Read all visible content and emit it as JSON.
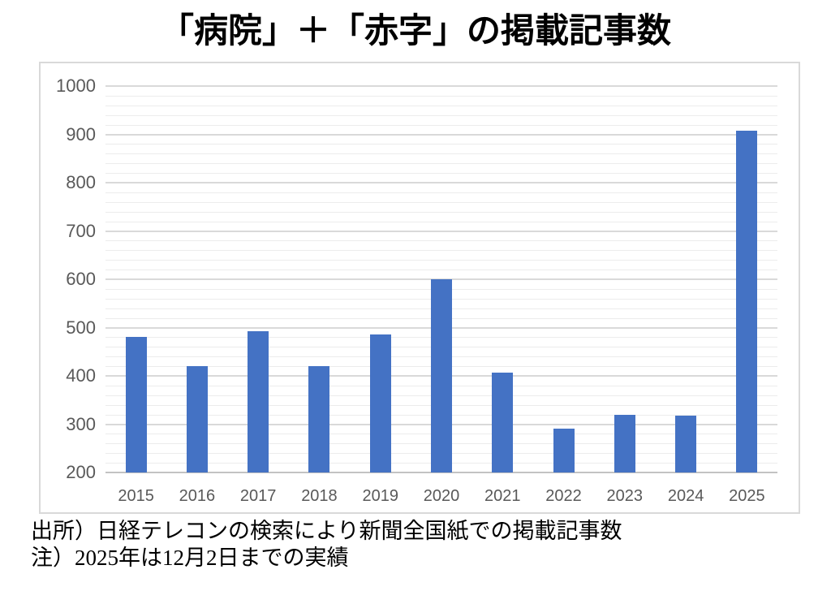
{
  "page": {
    "title": "「病院」＋「赤字」の掲載記事数",
    "source_note": "出所）日経テレコンの検索により新聞全国紙での掲載記事数",
    "footnote": "注）2025年は12月2日までの実績"
  },
  "chart_data": {
    "type": "bar",
    "title": "「病院」＋「赤字」の掲載記事数",
    "categories": [
      "2015",
      "2016",
      "2017",
      "2018",
      "2019",
      "2020",
      "2021",
      "2022",
      "2023",
      "2024",
      "2025"
    ],
    "values": [
      480,
      420,
      493,
      420,
      486,
      600,
      406,
      290,
      320,
      317,
      907
    ],
    "xlabel": "",
    "ylabel": "",
    "ylim": [
      200,
      1000
    ],
    "y_major_step": 100,
    "y_minor_step": 20,
    "y_tick_labels": [
      "200",
      "300",
      "400",
      "500",
      "600",
      "700",
      "800",
      "900",
      "1000"
    ],
    "grid": true,
    "legend": false,
    "colors": {
      "bar": "#4472c4",
      "axis_text": "#595959",
      "major_grid": "#d9d9d9",
      "minor_grid": "#ececec",
      "baseline": "#c2c2c2",
      "frame_border": "#d9d9d9",
      "title_text": "#000000"
    }
  }
}
